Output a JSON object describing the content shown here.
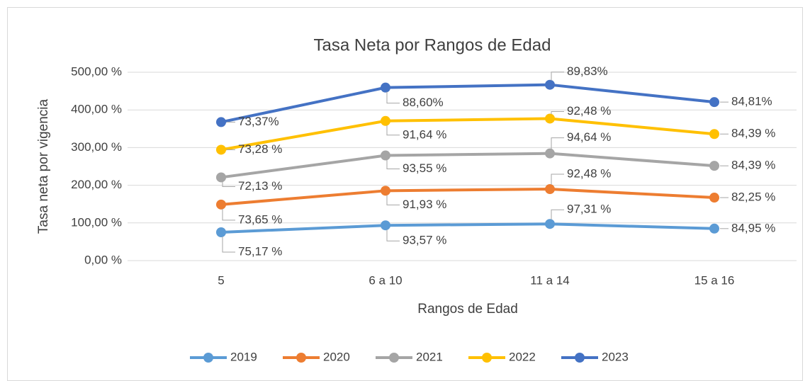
{
  "chart_data": {
    "type": "line",
    "stacked": true,
    "title": "Tasa Neta por Rangos de Edad",
    "x_label": "Rangos de Edad",
    "y_label": "Tasa neta por vigencia",
    "categories": [
      "5",
      "6 a 10",
      "11 a 14",
      "15 a 16"
    ],
    "ylim": [
      0,
      500
    ],
    "yticks": [
      {
        "value": 0,
        "label": "0,00 %"
      },
      {
        "value": 100,
        "label": "100,00 %"
      },
      {
        "value": 200,
        "label": "200,00 %"
      },
      {
        "value": 300,
        "label": "300,00 %"
      },
      {
        "value": 400,
        "label": "400,00 %"
      },
      {
        "value": 500,
        "label": "500,00 %"
      }
    ],
    "grid": true,
    "legend": "bottom",
    "series": [
      {
        "name": "2019",
        "color": "#5b9bd5",
        "values": [
          75.17,
          93.57,
          97.31,
          84.95
        ],
        "value_labels": [
          "75,17 %",
          "93,57 %",
          "97,31 %",
          "84,95 %"
        ]
      },
      {
        "name": "2020",
        "color": "#ed7d31",
        "values": [
          73.65,
          91.93,
          92.48,
          82.25
        ],
        "value_labels": [
          "73,65 %",
          "91,93 %",
          "92,48 %",
          "82,25 %"
        ]
      },
      {
        "name": "2021",
        "color": "#a5a5a5",
        "values": [
          72.13,
          93.55,
          94.64,
          84.39
        ],
        "value_labels": [
          "72,13 %",
          "93,55 %",
          "94,64 %",
          "84,39 %"
        ]
      },
      {
        "name": "2022",
        "color": "#ffc000",
        "values": [
          73.28,
          91.64,
          92.48,
          84.39
        ],
        "value_labels": [
          "73,28 %",
          "91,64 %",
          "92,48 %",
          "84,39 %"
        ]
      },
      {
        "name": "2023",
        "color": "#4472c4",
        "values": [
          73.37,
          88.6,
          89.83,
          84.81
        ],
        "value_labels": [
          "73,37%",
          "88,60%",
          "89,83%",
          "84,81%"
        ]
      }
    ]
  }
}
